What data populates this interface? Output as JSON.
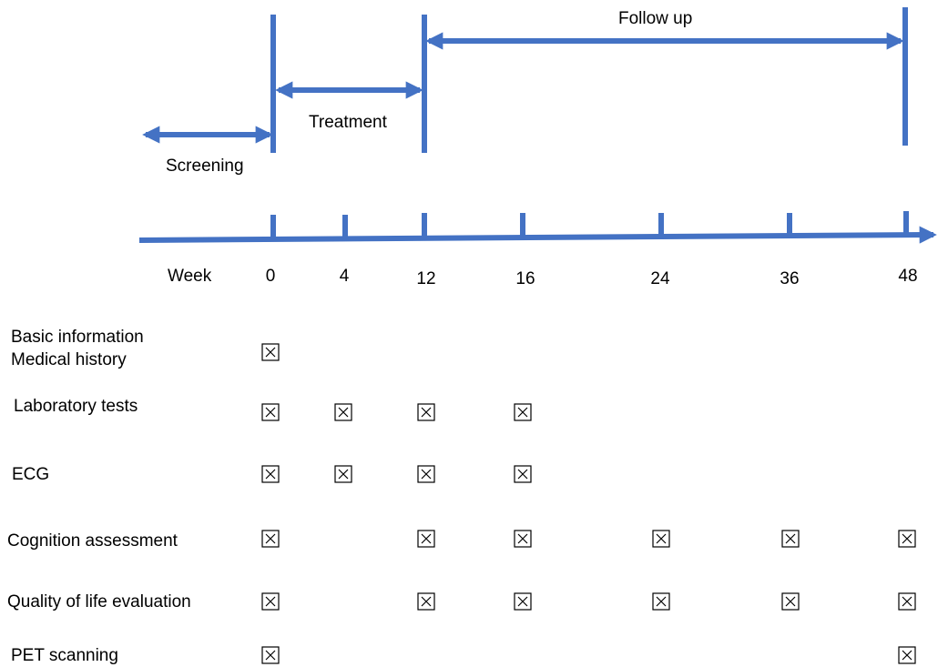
{
  "phases": {
    "screening": "Screening",
    "treatment": "Treatment",
    "follow_up": "Follow up"
  },
  "timeline": {
    "axis_label": "Week",
    "weeks": [
      "0",
      "4",
      "12",
      "16",
      "24",
      "36",
      "48"
    ]
  },
  "activities": [
    {
      "label_lines": [
        "Basic information",
        "Medical history"
      ],
      "weeks": [
        "0"
      ]
    },
    {
      "label_lines": [
        "Laboratory tests"
      ],
      "weeks": [
        "0",
        "4",
        "12",
        "16"
      ]
    },
    {
      "label_lines": [
        "ECG"
      ],
      "weeks": [
        "0",
        "4",
        "12",
        "16"
      ]
    },
    {
      "label_lines": [
        "Cognition assessment"
      ],
      "weeks": [
        "0",
        "12",
        "16",
        "24",
        "36",
        "48"
      ]
    },
    {
      "label_lines": [
        "Quality of life evaluation"
      ],
      "weeks": [
        "0",
        "12",
        "16",
        "24",
        "36",
        "48"
      ]
    },
    {
      "label_lines": [
        "PET scanning"
      ],
      "weeks": [
        "0",
        "48"
      ]
    }
  ],
  "colors": {
    "timeline": "#4472C4",
    "text": "#000000"
  },
  "marker_icon": "checked-box-icon"
}
